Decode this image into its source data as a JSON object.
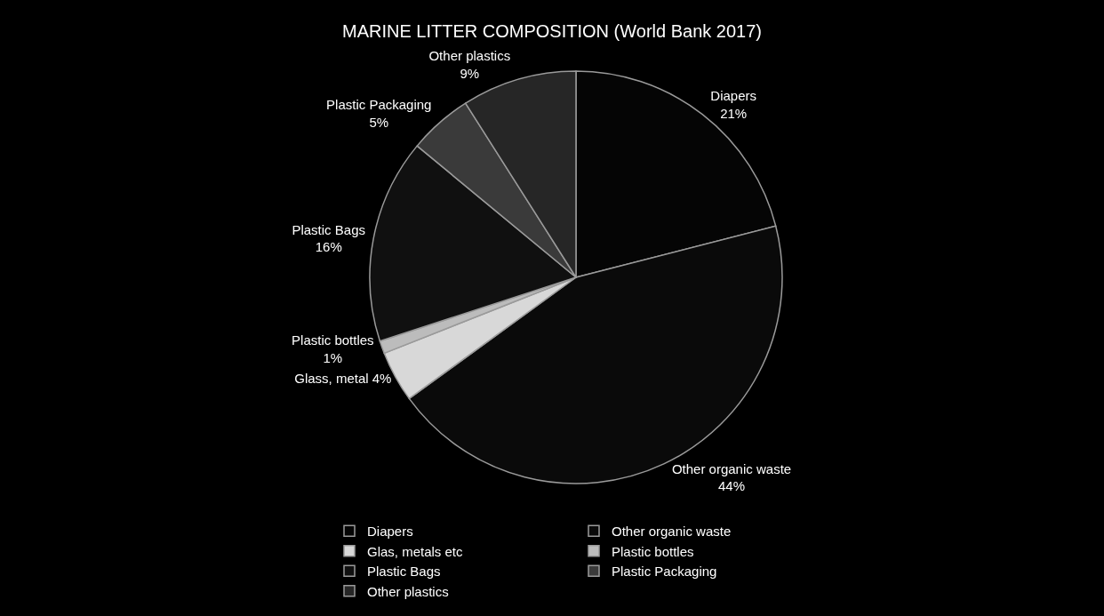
{
  "chart_data": {
    "type": "pie",
    "title": "MARINE LITTER COMPOSITION (World Bank 2017)",
    "categories": [
      "Diapers",
      "Other organic waste",
      "Glas, metals etc",
      "Plastic bottles",
      "Plastic Bags",
      "Plastic Packaging",
      "Other plastics"
    ],
    "values": [
      21,
      44,
      4,
      1,
      16,
      5,
      9
    ],
    "value_labels": [
      "Diapers\n21%",
      "Other organic waste\n44%",
      "Glass, metal 4%",
      "Plastic bottles\n1%",
      "Plastic Bags\n16%",
      "Plastic Packaging\n5%",
      "Other plastics\n9%"
    ],
    "colors": [
      "#050505",
      "#0a0a0a",
      "#d8d8d8",
      "#bcbcbc",
      "#101010",
      "#3a3a3a",
      "#262626"
    ],
    "legend": "bottom"
  }
}
